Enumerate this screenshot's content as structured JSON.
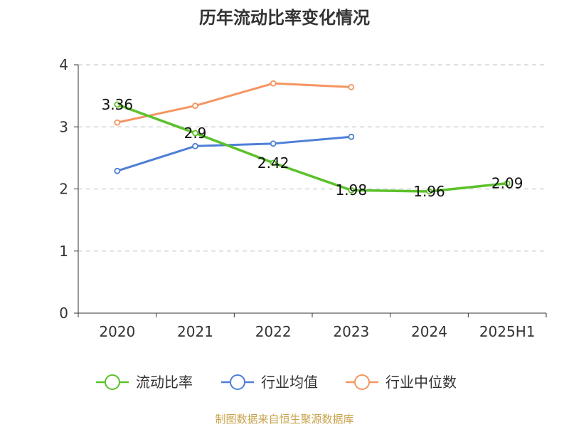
{
  "title": "历年流动比率变化情况",
  "source": "制图数据来自恒生聚源数据库",
  "chart_data": {
    "type": "line",
    "title": "历年流动比率变化情况",
    "categories": [
      "2020",
      "2021",
      "2022",
      "2023",
      "2024",
      "2025H1"
    ],
    "ylim": [
      0,
      4
    ],
    "yticks": [
      "0",
      "1",
      "2",
      "3",
      "4"
    ],
    "grid": true,
    "legend_position": "bottom",
    "series": [
      {
        "name": "流动比率",
        "color": "#5cc12a",
        "values": [
          3.36,
          2.9,
          2.42,
          1.98,
          1.96,
          2.09
        ],
        "labels": [
          "3.36",
          "2.9",
          "2.42",
          "1.98",
          "1.96",
          "2.09"
        ]
      },
      {
        "name": "行业均值",
        "color": "#4e7fd7",
        "values": [
          2.29,
          2.69,
          2.73,
          2.84,
          null,
          null
        ]
      },
      {
        "name": "行业中位数",
        "color": "#f59561",
        "values": [
          3.07,
          3.34,
          3.7,
          3.64,
          null,
          null
        ]
      }
    ]
  }
}
